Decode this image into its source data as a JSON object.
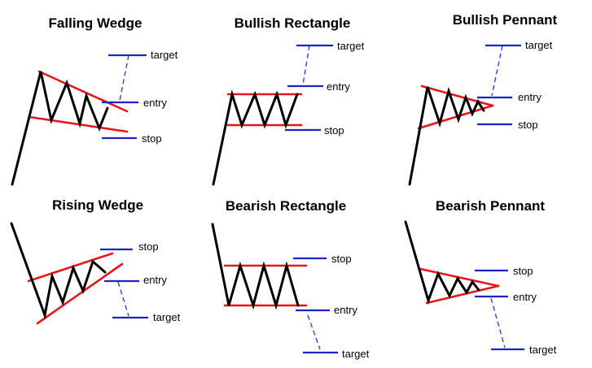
{
  "colors": {
    "background": "#ffffff",
    "price": "#000000",
    "boundary": "#e8151b",
    "level": "#1f22c9",
    "projection": "#2a2fe0"
  },
  "patterns": [
    {
      "title": "Falling Wedge",
      "labels": {
        "target": "target",
        "entry": "entry",
        "stop": "stop"
      }
    },
    {
      "title": "Bullish Rectangle",
      "labels": {
        "target": "target",
        "entry": "entry",
        "stop": "stop"
      }
    },
    {
      "title": "Bullish Pennant",
      "labels": {
        "target": "target",
        "entry": "entry",
        "stop": "stop"
      }
    },
    {
      "title": "Rising Wedge",
      "labels": {
        "target": "target",
        "entry": "entry",
        "stop": "stop"
      }
    },
    {
      "title": "Bearish Rectangle",
      "labels": {
        "target": "target",
        "entry": "entry",
        "stop": "stop"
      }
    },
    {
      "title": "Bearish Pennant",
      "labels": {
        "target": "target",
        "entry": "entry",
        "stop": "stop"
      }
    }
  ]
}
